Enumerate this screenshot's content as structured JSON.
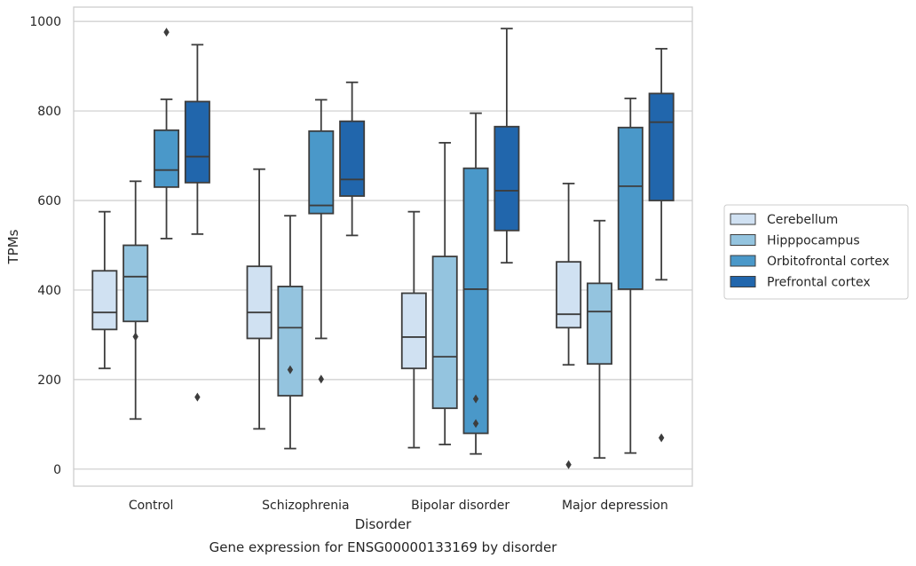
{
  "chart_data": {
    "type": "boxplot",
    "caption": "Gene expression for ENSG00000133169 by disorder",
    "xlabel": "Disorder",
    "ylabel": "TPMs",
    "ylim": [
      -38,
      1032
    ],
    "yticks": [
      0,
      200,
      400,
      600,
      800,
      1000
    ],
    "grid": true,
    "legend_position": "right",
    "categories": [
      "Control",
      "Schizophrenia",
      "Bipolar disorder",
      "Major depression"
    ],
    "series": [
      {
        "name": "Cerebellum",
        "color": "#d0e1f2",
        "boxes": [
          {
            "whisker_low": 225,
            "q1": 312,
            "median": 350,
            "q3": 443,
            "whisker_high": 575,
            "outliers": []
          },
          {
            "whisker_low": 90,
            "q1": 292,
            "median": 350,
            "q3": 453,
            "whisker_high": 670,
            "outliers": []
          },
          {
            "whisker_low": 48,
            "q1": 225,
            "median": 295,
            "q3": 393,
            "whisker_high": 575,
            "outliers": []
          },
          {
            "whisker_low": 233,
            "q1": 316,
            "median": 346,
            "q3": 463,
            "whisker_high": 638,
            "outliers": [
              10
            ]
          }
        ]
      },
      {
        "name": "Hipppocampus",
        "color": "#94c4df",
        "boxes": [
          {
            "whisker_low": 112,
            "q1": 330,
            "median": 430,
            "q3": 500,
            "whisker_high": 643,
            "outliers": [
              296
            ]
          },
          {
            "whisker_low": 46,
            "q1": 164,
            "median": 316,
            "q3": 408,
            "whisker_high": 566,
            "outliers": [
              222
            ]
          },
          {
            "whisker_low": 55,
            "q1": 136,
            "median": 251,
            "q3": 475,
            "whisker_high": 729,
            "outliers": []
          },
          {
            "whisker_low": 25,
            "q1": 235,
            "median": 352,
            "q3": 415,
            "whisker_high": 555,
            "outliers": []
          }
        ]
      },
      {
        "name": "Orbitofrontal cortex",
        "color": "#4a98c9",
        "boxes": [
          {
            "whisker_low": 515,
            "q1": 630,
            "median": 668,
            "q3": 757,
            "whisker_high": 826,
            "outliers": [
              976
            ]
          },
          {
            "whisker_low": 292,
            "q1": 571,
            "median": 589,
            "q3": 755,
            "whisker_high": 825,
            "outliers": [
              201
            ]
          },
          {
            "whisker_low": 34,
            "q1": 80,
            "median": 402,
            "q3": 672,
            "whisker_high": 795,
            "outliers": [
              157,
              102
            ]
          },
          {
            "whisker_low": 36,
            "q1": 402,
            "median": 632,
            "q3": 763,
            "whisker_high": 828,
            "outliers": []
          }
        ]
      },
      {
        "name": "Prefrontal cortex",
        "color": "#2166ac",
        "boxes": [
          {
            "whisker_low": 525,
            "q1": 640,
            "median": 698,
            "q3": 821,
            "whisker_high": 948,
            "outliers": [
              161
            ]
          },
          {
            "whisker_low": 522,
            "q1": 610,
            "median": 647,
            "q3": 777,
            "whisker_high": 864,
            "outliers": []
          },
          {
            "whisker_low": 461,
            "q1": 533,
            "median": 622,
            "q3": 765,
            "whisker_high": 984,
            "outliers": []
          },
          {
            "whisker_low": 423,
            "q1": 600,
            "median": 775,
            "q3": 839,
            "whisker_high": 939,
            "outliers": [
              70
            ]
          }
        ]
      }
    ]
  }
}
